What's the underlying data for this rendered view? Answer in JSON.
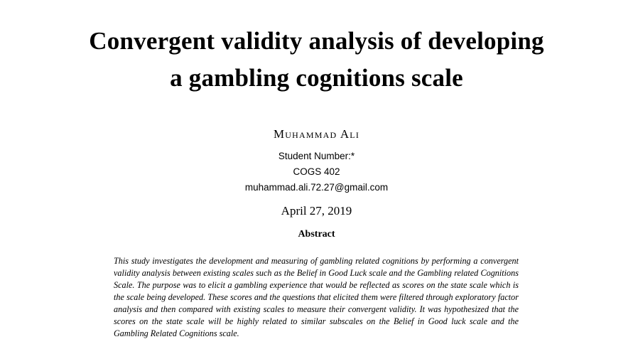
{
  "title": "Convergent validity analysis of developing a gambling cognitions scale",
  "author": "Muhammad Ali",
  "student_number": "Student Number:*",
  "course": "COGS 402",
  "email": "muhammad.ali.72.27@gmail.com",
  "date": "April 27, 2019",
  "abstract": {
    "heading": "Abstract",
    "body": "This study investigates the development and measuring of gambling related cognitions by performing a convergent validity analysis between existing scales such as the Belief in Good Luck scale and the Gambling related Cognitions Scale. The purpose was to elicit a gambling experience that would be reflected as scores on the state scale which is the scale being developed. These scores and the questions that elicited them were filtered through exploratory factor analysis and then compared with existing scales to measure their convergent validity. It was hypothesized that the scores on the state scale will be highly related to similar subscales on the Belief in Good luck scale and the Gambling Related Cognitions scale."
  }
}
